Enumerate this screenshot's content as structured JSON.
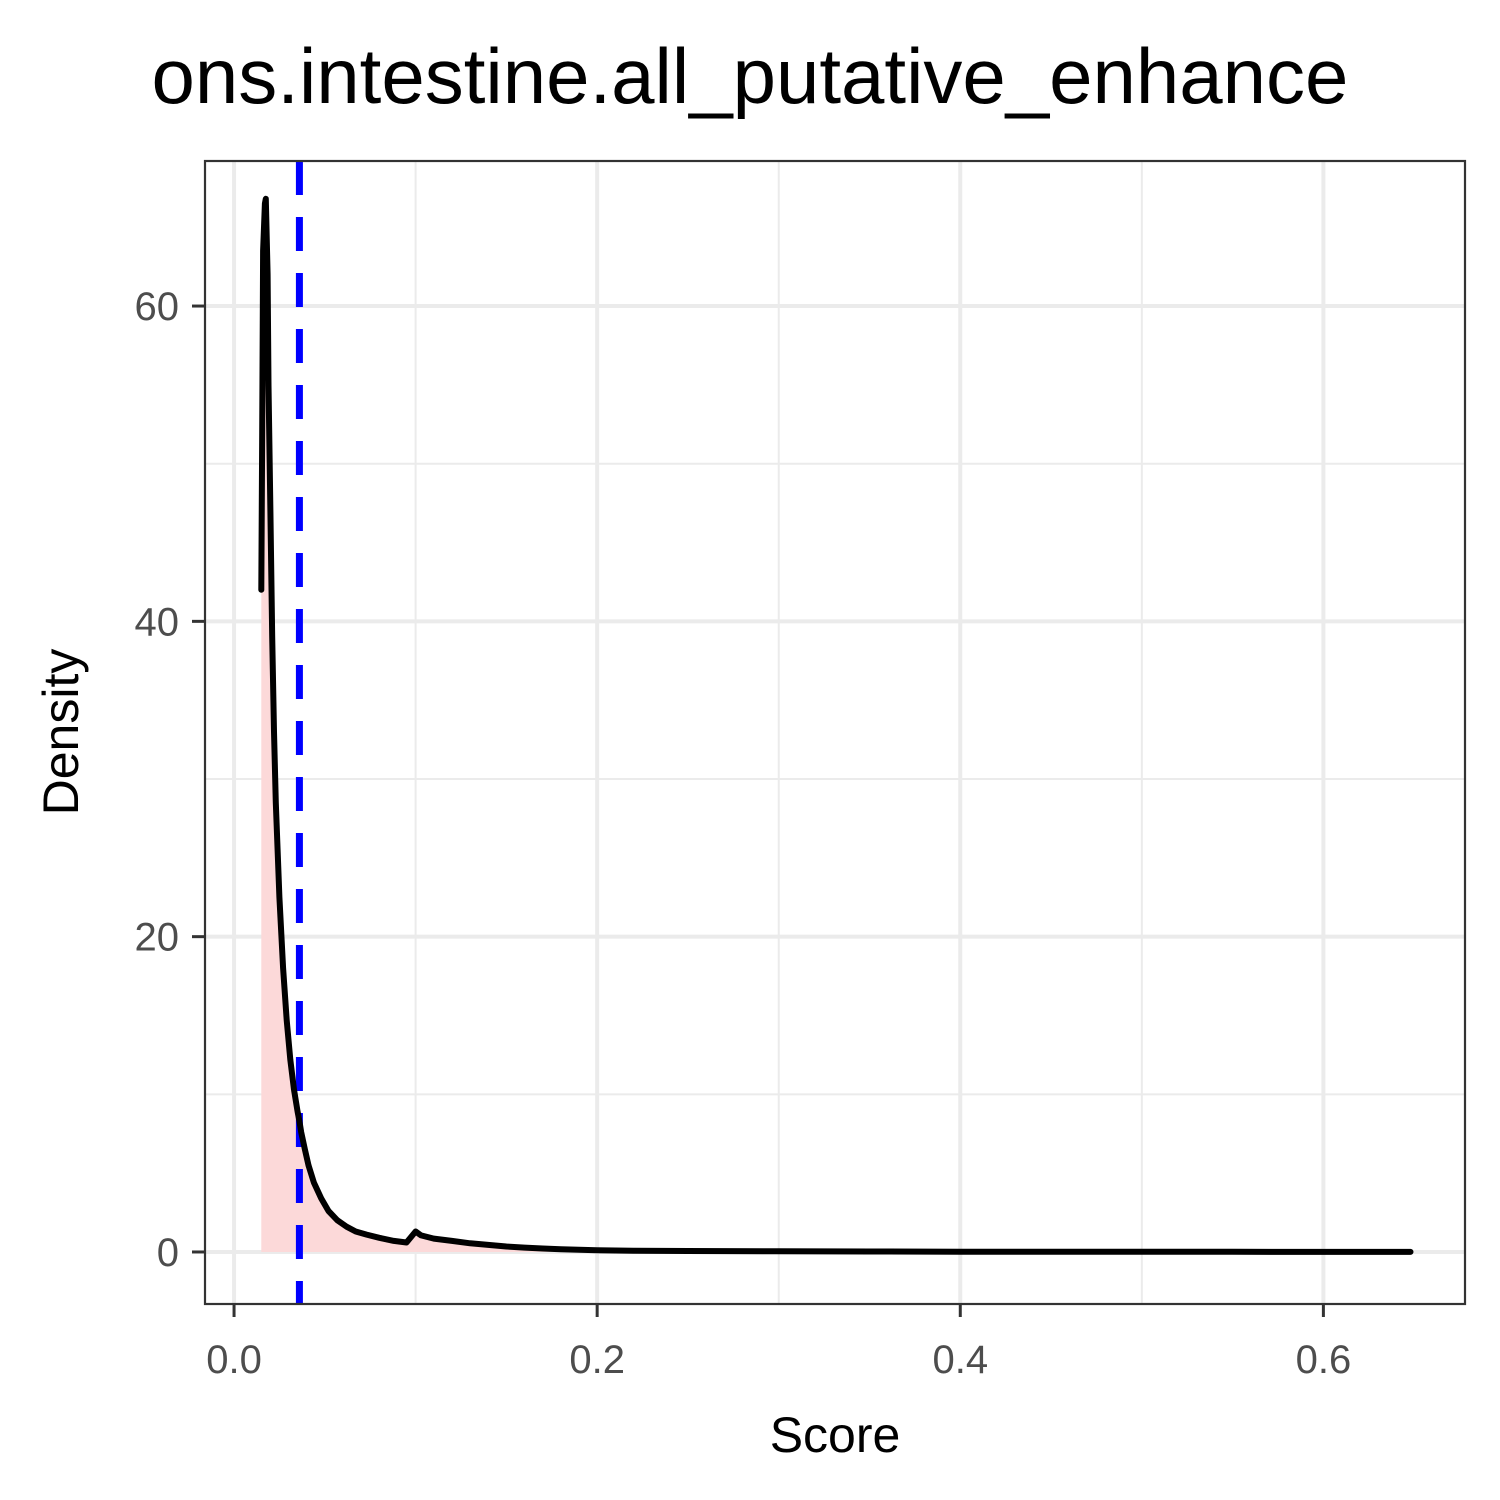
{
  "chart_data": {
    "type": "area",
    "title": "ons.intestine.all_putative_enhance",
    "xlabel": "Score",
    "ylabel": "Density",
    "xlim": [
      -0.016,
      0.678
    ],
    "ylim": [
      -3.3,
      69.2
    ],
    "x_ticks": [
      {
        "value": 0.0,
        "label": "0.0"
      },
      {
        "value": 0.2,
        "label": "0.2"
      },
      {
        "value": 0.4,
        "label": "0.4"
      },
      {
        "value": 0.6,
        "label": "0.6"
      }
    ],
    "y_ticks": [
      {
        "value": 0,
        "label": "0"
      },
      {
        "value": 20,
        "label": "20"
      },
      {
        "value": 40,
        "label": "40"
      },
      {
        "value": 60,
        "label": "60"
      }
    ],
    "x_minor_grid": [
      0.1,
      0.3,
      0.5
    ],
    "y_minor_grid": [
      10,
      30,
      50
    ],
    "grid": true,
    "background": "#ffffff",
    "grid_color": "#ebebeb",
    "panel_border_color": "#333333",
    "fill_color": "#fcd9d9",
    "line_color": "#000000",
    "vline": {
      "x": 0.036,
      "color": "#0000ff",
      "style": "dashed"
    },
    "series": [
      {
        "x": [
          0.015,
          0.0155,
          0.016,
          0.017,
          0.0175,
          0.0185,
          0.019,
          0.02,
          0.021,
          0.022,
          0.023,
          0.025,
          0.027,
          0.029,
          0.031,
          0.033,
          0.035,
          0.036,
          0.037,
          0.039,
          0.041,
          0.044,
          0.048,
          0.052,
          0.057,
          0.062,
          0.067,
          0.073,
          0.08,
          0.088,
          0.095,
          0.1,
          0.103,
          0.11,
          0.12,
          0.13,
          0.14,
          0.15,
          0.16,
          0.17,
          0.18,
          0.19,
          0.2,
          0.22,
          0.25,
          0.3,
          0.35,
          0.4,
          0.45,
          0.5,
          0.55,
          0.6,
          0.63,
          0.648
        ],
        "y": [
          42,
          52,
          63.5,
          66.5,
          66.8,
          62,
          55,
          47,
          39,
          33,
          28.5,
          22.5,
          18,
          14.7,
          12.2,
          10.3,
          8.9,
          8.3,
          7.6,
          6.5,
          5.5,
          4.4,
          3.4,
          2.6,
          2.0,
          1.6,
          1.3,
          1.1,
          0.9,
          0.7,
          0.6,
          1.3,
          1.05,
          0.85,
          0.7,
          0.55,
          0.45,
          0.35,
          0.28,
          0.22,
          0.17,
          0.14,
          0.11,
          0.08,
          0.06,
          0.04,
          0.03,
          0.02,
          0.015,
          0.01,
          0.008,
          0.006,
          0.005,
          0.005
        ]
      }
    ]
  }
}
